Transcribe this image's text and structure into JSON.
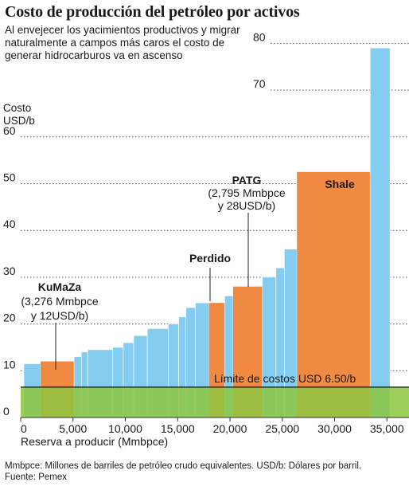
{
  "title": "Costo de producción del petróleo por activos",
  "subtitle": "Al envejecer los yacimientos productivos y migrar naturalmente a campos más caros el costo de generar hidrocarburos va en ascenso",
  "footnote": "Mmbpce: Millones de barriles de petróleo crudo equivalentes. USD/b: Dólares por barril.",
  "source": "Fuente: Pemex",
  "chart_data": {
    "type": "bar",
    "subtype": "cost-supply curve (variable-width bars)",
    "xlabel": "Reserva a producir (Mmbpce)",
    "ylabel_lines": [
      "Costo",
      "USD/b"
    ],
    "xlim": [
      0,
      37000
    ],
    "ylim": [
      0,
      80
    ],
    "xticks": [
      0,
      5000,
      10000,
      15000,
      20000,
      25000,
      30000,
      35000
    ],
    "xtick_labels": [
      "0",
      "5,000",
      "10,000",
      "15,000",
      "20,000",
      "25,000",
      "30,000",
      "35,000"
    ],
    "yticks": [
      0,
      10,
      20,
      30,
      40,
      50,
      60,
      70,
      80
    ],
    "grid": "dotted horizontal lines",
    "colors": {
      "assets": "#85cdf0",
      "highlighted": "#f08a43",
      "limit_band": "#8dc63f",
      "limit_line": "#111111"
    },
    "threshold": {
      "value": 6.5,
      "label": "Límite de costos USD 6.50/b"
    },
    "series": [
      {
        "values": [
          {
            "x0": 300,
            "x1": 1900,
            "y": 11.5
          },
          {
            "x0": 1900,
            "x1": 5100,
            "y": 12,
            "highlight": true,
            "name": "KuMaZa"
          },
          {
            "x0": 5100,
            "x1": 5800,
            "y": 13
          },
          {
            "x0": 5800,
            "x1": 6400,
            "y": 14
          },
          {
            "x0": 6400,
            "x1": 8800,
            "y": 14.5
          },
          {
            "x0": 8800,
            "x1": 9800,
            "y": 15
          },
          {
            "x0": 9800,
            "x1": 10800,
            "y": 16
          },
          {
            "x0": 10800,
            "x1": 12100,
            "y": 17.5
          },
          {
            "x0": 12100,
            "x1": 14100,
            "y": 19
          },
          {
            "x0": 14100,
            "x1": 15100,
            "y": 20
          },
          {
            "x0": 15100,
            "x1": 15800,
            "y": 21.5
          },
          {
            "x0": 15800,
            "x1": 16700,
            "y": 23.5
          },
          {
            "x0": 16700,
            "x1": 18000,
            "y": 24.5
          },
          {
            "x0": 18000,
            "x1": 19500,
            "y": 24.5,
            "highlight": true,
            "name": "Perdido"
          },
          {
            "x0": 19500,
            "x1": 20300,
            "y": 26
          },
          {
            "x0": 20300,
            "x1": 23100,
            "y": 28,
            "highlight": true,
            "name": "PATG"
          },
          {
            "x0": 23100,
            "x1": 24400,
            "y": 30
          },
          {
            "x0": 24400,
            "x1": 25200,
            "y": 32
          },
          {
            "x0": 25200,
            "x1": 26400,
            "y": 36
          },
          {
            "x0": 26400,
            "x1": 33400,
            "y": 52.5,
            "highlight": true,
            "name": "Shale"
          },
          {
            "x0": 33400,
            "x1": 35300,
            "y": 79
          }
        ]
      }
    ],
    "annotations": [
      {
        "lines": [
          "KuMaZa",
          "(3,276 Mmbpce",
          "y 12USD/b)"
        ]
      },
      {
        "lines": [
          "Perdido"
        ]
      },
      {
        "lines": [
          "PATG",
          "(2,795 Mmbpce",
          "y 28USD/b)"
        ]
      },
      {
        "lines": [
          "Shale"
        ]
      }
    ]
  }
}
